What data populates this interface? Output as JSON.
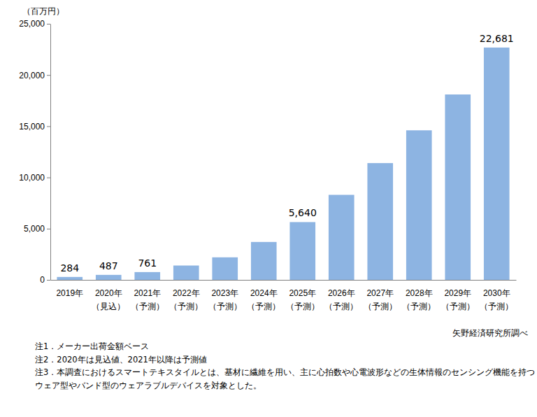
{
  "chart_data": {
    "type": "bar",
    "ylabel": "（百万円）",
    "categories": [
      "2019年",
      "2020年\n（見込）",
      "2021年\n（予測）",
      "2022年\n（予測）",
      "2023年\n（予測）",
      "2024年\n（予測）",
      "2025年\n（予測）",
      "2026年\n（予測）",
      "2027年\n（予測）",
      "2028年\n（予測）",
      "2029年\n（予測）",
      "2030年\n（予測）"
    ],
    "values": [
      284,
      487,
      761,
      1400,
      2200,
      3700,
      5640,
      8300,
      11400,
      14600,
      18100,
      22681
    ],
    "value_labels": [
      "284",
      "487",
      "761",
      null,
      null,
      null,
      "5,640",
      null,
      null,
      null,
      null,
      "22,681"
    ],
    "data_labels": true,
    "color": "#8db4e2",
    "ylim": [
      0,
      25000
    ],
    "yticks": [
      0,
      {
        "value": 5000,
        "label": "5,000"
      },
      {
        "value": 10000,
        "label": "10,000"
      },
      {
        "value": 15000,
        "label": "15,000"
      },
      {
        "value": 20000,
        "label": "20,000"
      },
      {
        "value": 25000,
        "label": "25,000"
      }
    ],
    "grid": false,
    "source": "矢野経済研究所調べ",
    "notes": [
      "注1．メーカー出荷金額ベース",
      "注2．2020年は見込値、2021年以降は予測値",
      "注3．本調査におけるスマートテキスタイルとは、基材に繊維を用い、主に心拍数や心電波形などの生体情報のセンシング機能を持つ",
      "ウェア型やバンド型のウェアラブルデバイスを対象とした。"
    ]
  }
}
